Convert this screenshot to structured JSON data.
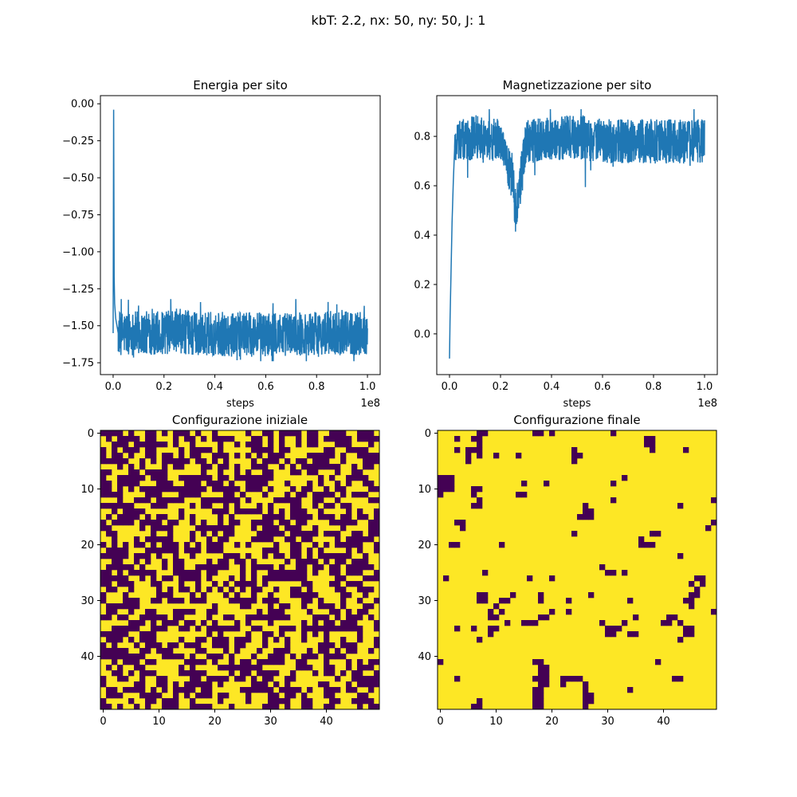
{
  "suptitle": "kbT: 2.2, nx: 50, ny: 50, J: 1",
  "chart_data": [
    {
      "type": "line",
      "title": "Energia per sito",
      "xlabel": "steps",
      "ylabel": "",
      "x_offset_label": "1e8",
      "xlim": [
        -0.05,
        1.05
      ],
      "ylim": [
        -1.83,
        0.055
      ],
      "x_ticks": [
        0.0,
        0.2,
        0.4,
        0.6,
        0.8,
        1.0
      ],
      "x_tick_labels": [
        "0.0",
        "0.2",
        "0.4",
        "0.6",
        "0.8",
        "1.0"
      ],
      "y_ticks": [
        0.0,
        -0.25,
        -0.5,
        -0.75,
        -1.0,
        -1.25,
        -1.5,
        -1.75
      ],
      "y_tick_labels": [
        "0.00",
        "−0.25",
        "−0.50",
        "−0.75",
        "−1.00",
        "−1.25",
        "−1.50",
        "−1.75"
      ],
      "color": "#1f77b4",
      "series": [
        {
          "x": [
            0.0,
            0.002,
            0.004,
            0.006,
            0.01,
            0.015,
            0.02,
            0.03,
            0.05,
            0.1,
            0.2,
            0.25,
            0.3,
            0.5,
            0.6,
            0.8,
            0.85,
            1.0
          ],
          "y": [
            -1.55,
            -0.04,
            -1.17,
            -1.35,
            -1.45,
            -1.5,
            -1.55,
            -1.55,
            -1.55,
            -1.55,
            -1.55,
            -1.53,
            -1.55,
            -1.56,
            -1.56,
            -1.55,
            -1.55,
            -1.55
          ],
          "band_low": -1.7,
          "band_high": -1.4,
          "min": -1.74,
          "max": -1.32
        }
      ]
    },
    {
      "type": "line",
      "title": "Magnetizzazione per sito",
      "xlabel": "steps",
      "ylabel": "",
      "x_offset_label": "1e8",
      "xlim": [
        -0.05,
        1.05
      ],
      "ylim": [
        -0.165,
        0.965
      ],
      "x_ticks": [
        0.0,
        0.2,
        0.4,
        0.6,
        0.8,
        1.0
      ],
      "x_tick_labels": [
        "0.0",
        "0.2",
        "0.4",
        "0.6",
        "0.8",
        "1.0"
      ],
      "y_ticks": [
        0.0,
        0.2,
        0.4,
        0.6,
        0.8
      ],
      "y_tick_labels": [
        "0.0",
        "0.2",
        "0.4",
        "0.6",
        "0.8"
      ],
      "color": "#1f77b4",
      "series": [
        {
          "x": [
            0.0,
            0.002,
            0.005,
            0.01,
            0.015,
            0.02,
            0.03,
            0.05,
            0.1,
            0.2,
            0.25,
            0.26,
            0.3,
            0.5,
            0.6,
            0.8,
            1.0
          ],
          "y": [
            -0.1,
            0.05,
            0.2,
            0.45,
            0.62,
            0.75,
            0.8,
            0.78,
            0.8,
            0.78,
            0.6,
            0.48,
            0.78,
            0.8,
            0.78,
            0.78,
            0.78
          ],
          "band_low": 0.7,
          "band_high": 0.88,
          "min": -0.11,
          "max": 0.91
        }
      ]
    },
    {
      "type": "heatmap",
      "title": "Configurazione iniziale",
      "nx": 50,
      "ny": 50,
      "x_ticks": [
        0,
        10,
        20,
        30,
        40
      ],
      "x_tick_labels": [
        "0",
        "10",
        "20",
        "30",
        "40"
      ],
      "y_ticks": [
        0,
        10,
        20,
        30,
        40
      ],
      "y_tick_labels": [
        "0",
        "10",
        "20",
        "30",
        "40"
      ],
      "colors": {
        "up": "#fde725",
        "down": "#440154"
      },
      "description_of_values": "random ±1 spins, roughly half up",
      "up_fraction": 0.5
    },
    {
      "type": "heatmap",
      "title": "Configurazione finale",
      "nx": 50,
      "ny": 50,
      "x_ticks": [
        0,
        10,
        20,
        30,
        40
      ],
      "x_tick_labels": [
        "0",
        "10",
        "20",
        "30",
        "40"
      ],
      "y_ticks": [
        0,
        10,
        20,
        30,
        40
      ],
      "y_tick_labels": [
        "0",
        "10",
        "20",
        "30",
        "40"
      ],
      "colors": {
        "up": "#fde725",
        "down": "#440154"
      },
      "up_fraction": 0.88,
      "down_cells": [
        [
          7,
          0
        ],
        [
          8,
          0
        ],
        [
          17,
          0
        ],
        [
          18,
          0
        ],
        [
          20,
          0
        ],
        [
          31,
          0
        ],
        [
          3,
          1
        ],
        [
          6,
          1
        ],
        [
          7,
          1
        ],
        [
          37,
          1
        ],
        [
          38,
          1
        ],
        [
          7,
          2
        ],
        [
          37,
          2
        ],
        [
          38,
          2
        ],
        [
          3,
          3
        ],
        [
          5,
          3
        ],
        [
          6,
          3
        ],
        [
          7,
          3
        ],
        [
          24,
          3
        ],
        [
          38,
          3
        ],
        [
          44,
          3
        ],
        [
          5,
          4
        ],
        [
          7,
          4
        ],
        [
          10,
          4
        ],
        [
          14,
          4
        ],
        [
          24,
          4
        ],
        [
          25,
          4
        ],
        [
          5,
          5
        ],
        [
          24,
          5
        ],
        [
          0,
          8
        ],
        [
          1,
          8
        ],
        [
          2,
          8
        ],
        [
          0,
          9
        ],
        [
          1,
          9
        ],
        [
          2,
          9
        ],
        [
          33,
          8
        ],
        [
          15,
          9
        ],
        [
          19,
          9
        ],
        [
          31,
          9
        ],
        [
          0,
          10
        ],
        [
          1,
          10
        ],
        [
          2,
          10
        ],
        [
          6,
          10
        ],
        [
          7,
          10
        ],
        [
          0,
          11
        ],
        [
          6,
          11
        ],
        [
          14,
          11
        ],
        [
          15,
          11
        ],
        [
          7,
          12
        ],
        [
          31,
          12
        ],
        [
          49,
          12
        ],
        [
          26,
          13
        ],
        [
          6,
          13
        ],
        [
          7,
          13
        ],
        [
          26,
          14
        ],
        [
          27,
          14
        ],
        [
          26,
          15
        ],
        [
          43,
          13
        ],
        [
          3,
          16
        ],
        [
          27,
          15
        ],
        [
          25,
          15
        ],
        [
          38,
          18
        ],
        [
          4,
          16
        ],
        [
          4,
          17
        ],
        [
          49,
          16
        ],
        [
          48,
          17
        ],
        [
          24,
          18
        ],
        [
          39,
          18
        ],
        [
          2,
          20
        ],
        [
          3,
          20
        ],
        [
          36,
          20
        ],
        [
          37,
          20
        ],
        [
          38,
          20
        ],
        [
          36,
          19
        ],
        [
          11,
          20
        ],
        [
          43,
          22
        ],
        [
          8,
          25
        ],
        [
          16,
          26
        ],
        [
          29,
          24
        ],
        [
          30,
          25
        ],
        [
          33,
          25
        ],
        [
          31,
          25
        ],
        [
          1,
          26
        ],
        [
          20,
          26
        ],
        [
          45,
          27
        ],
        [
          46,
          26
        ],
        [
          47,
          26
        ],
        [
          46,
          28
        ],
        [
          45,
          29
        ],
        [
          44,
          30
        ],
        [
          45,
          30
        ],
        [
          47,
          27
        ],
        [
          13,
          29
        ],
        [
          27,
          29
        ],
        [
          7,
          29
        ],
        [
          8,
          29
        ],
        [
          7,
          30
        ],
        [
          8,
          30
        ],
        [
          11,
          30
        ],
        [
          12,
          30
        ],
        [
          18,
          29
        ],
        [
          18,
          30
        ],
        [
          10,
          31
        ],
        [
          23,
          30
        ],
        [
          34,
          30
        ],
        [
          45,
          31
        ],
        [
          46,
          29
        ],
        [
          20,
          32
        ],
        [
          19,
          33
        ],
        [
          18,
          33
        ],
        [
          11,
          32
        ],
        [
          9,
          32
        ],
        [
          10,
          33
        ],
        [
          23,
          32
        ],
        [
          49,
          32
        ],
        [
          9,
          33
        ],
        [
          35,
          33
        ],
        [
          41,
          33
        ],
        [
          42,
          33
        ],
        [
          40,
          34
        ],
        [
          41,
          34
        ],
        [
          43,
          34
        ],
        [
          16,
          34
        ],
        [
          17,
          34
        ],
        [
          15,
          34
        ],
        [
          29,
          34
        ],
        [
          30,
          35
        ],
        [
          31,
          35
        ],
        [
          32,
          35
        ],
        [
          30,
          36
        ],
        [
          31,
          36
        ],
        [
          34,
          36
        ],
        [
          35,
          36
        ],
        [
          41,
          34
        ],
        [
          44,
          35
        ],
        [
          45,
          35
        ],
        [
          45,
          36
        ],
        [
          44,
          36
        ],
        [
          6,
          35
        ],
        [
          3,
          35
        ],
        [
          9,
          35
        ],
        [
          10,
          35
        ],
        [
          9,
          36
        ],
        [
          12,
          34
        ],
        [
          33,
          34
        ],
        [
          43,
          37
        ],
        [
          7,
          37
        ],
        [
          0,
          41
        ],
        [
          39,
          41
        ],
        [
          17,
          41
        ],
        [
          18,
          41
        ],
        [
          18,
          42
        ],
        [
          19,
          42
        ],
        [
          18,
          43
        ],
        [
          19,
          43
        ],
        [
          17,
          44
        ],
        [
          18,
          44
        ],
        [
          19,
          44
        ],
        [
          22,
          44
        ],
        [
          23,
          44
        ],
        [
          24,
          44
        ],
        [
          25,
          44
        ],
        [
          22,
          45
        ],
        [
          26,
          45
        ],
        [
          18,
          45
        ],
        [
          19,
          45
        ],
        [
          3,
          44
        ],
        [
          42,
          44
        ],
        [
          43,
          44
        ],
        [
          17,
          46
        ],
        [
          18,
          46
        ],
        [
          26,
          46
        ],
        [
          17,
          47
        ],
        [
          18,
          47
        ],
        [
          26,
          47
        ],
        [
          27,
          47
        ],
        [
          34,
          46
        ],
        [
          7,
          48
        ],
        [
          17,
          48
        ],
        [
          18,
          48
        ],
        [
          26,
          48
        ],
        [
          27,
          48
        ],
        [
          6,
          49
        ],
        [
          7,
          49
        ],
        [
          17,
          49
        ],
        [
          18,
          49
        ],
        [
          26,
          49
        ]
      ]
    }
  ]
}
